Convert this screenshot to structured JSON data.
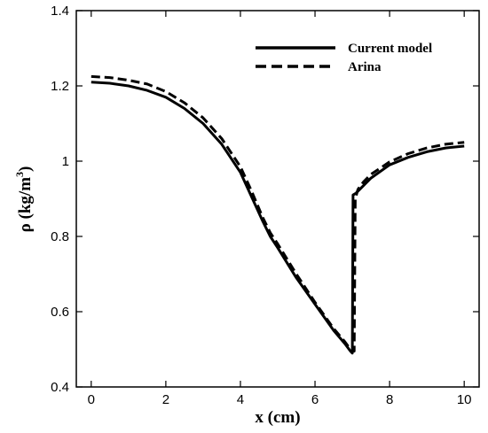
{
  "chart_data": {
    "type": "line",
    "xlabel": "x (cm)",
    "ylabel": {
      "main": "ρ (kg/m",
      "superscript": "3",
      "close": ")"
    },
    "xlim": [
      -0.4,
      10.4
    ],
    "ylim": [
      0.4,
      1.4
    ],
    "xticks": [
      0,
      2,
      4,
      6,
      8,
      10
    ],
    "yticks": [
      0.4,
      0.6,
      0.8,
      1.0,
      1.2,
      1.4
    ],
    "ytick_labels": [
      "0.4",
      "0.6",
      "0.8",
      "1",
      "1.2",
      "1.4"
    ],
    "xtick_labels": [
      "0",
      "2",
      "4",
      "6",
      "8",
      "10"
    ],
    "grid": false,
    "legend_position": "top-right",
    "series": [
      {
        "name": "Current model",
        "style": "solid",
        "color": "#000000",
        "x": [
          0,
          0.5,
          1.0,
          1.5,
          2.0,
          2.5,
          3.0,
          3.5,
          4.0,
          4.3,
          4.6,
          4.8,
          5.0,
          5.5,
          6.0,
          6.5,
          6.8,
          6.95,
          7.0,
          7.02,
          7.1,
          7.3,
          7.5,
          8.0,
          8.5,
          9.0,
          9.5,
          10.0
        ],
        "y": [
          1.21,
          1.207,
          1.2,
          1.188,
          1.17,
          1.14,
          1.1,
          1.045,
          0.97,
          0.905,
          0.84,
          0.8,
          0.77,
          0.69,
          0.62,
          0.55,
          0.515,
          0.495,
          0.49,
          0.91,
          0.915,
          0.935,
          0.955,
          0.99,
          1.01,
          1.025,
          1.035,
          1.04
        ]
      },
      {
        "name": "Arina",
        "style": "dashed",
        "color": "#000000",
        "x": [
          0,
          0.5,
          1.0,
          1.5,
          2.0,
          2.5,
          3.0,
          3.5,
          4.0,
          4.3,
          4.6,
          4.8,
          5.0,
          5.5,
          6.0,
          6.5,
          6.8,
          6.95,
          7.05,
          7.08,
          7.15,
          7.3,
          7.5,
          8.0,
          8.5,
          9.0,
          9.5,
          10.0
        ],
        "y": [
          1.225,
          1.222,
          1.215,
          1.205,
          1.185,
          1.155,
          1.115,
          1.06,
          0.985,
          0.92,
          0.85,
          0.81,
          0.78,
          0.7,
          0.625,
          0.555,
          0.52,
          0.5,
          0.495,
          0.9,
          0.925,
          0.945,
          0.965,
          0.998,
          1.02,
          1.035,
          1.045,
          1.05
        ]
      }
    ]
  }
}
